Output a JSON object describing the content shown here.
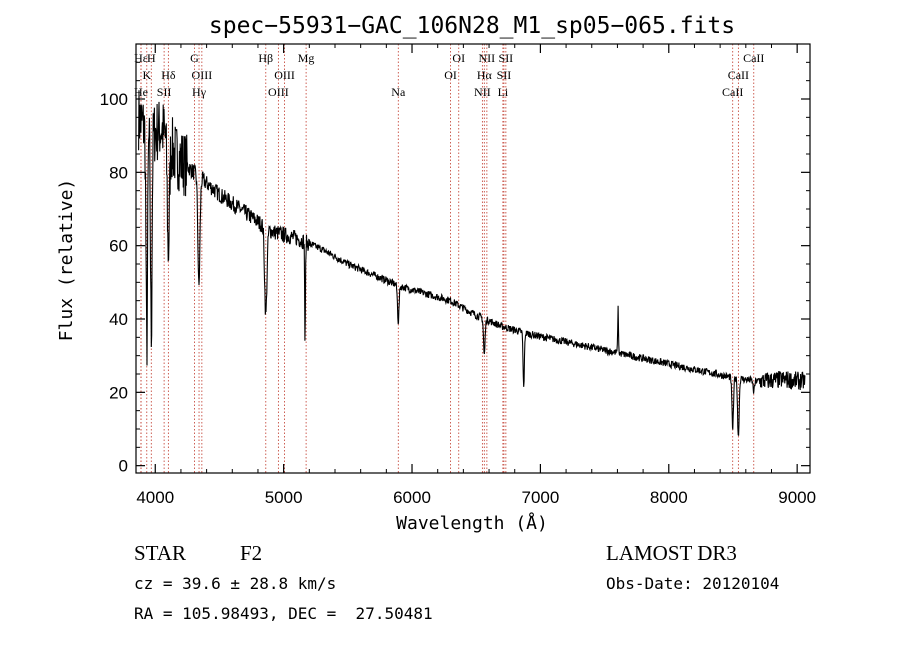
{
  "chart_data": {
    "type": "line",
    "title": "spec−55931−GAC_106N28_M1_sp05−065.fits",
    "xlabel": "Wavelength (Å)",
    "ylabel": "Flux (relative)",
    "xlim": [
      3850,
      9100
    ],
    "ylim": [
      -2,
      115
    ],
    "xticks": [
      4000,
      5000,
      6000,
      7000,
      8000,
      9000
    ],
    "yticks": [
      0,
      20,
      40,
      60,
      80,
      100
    ],
    "line_color": "#000000",
    "marker_color": "#c0392b",
    "continuum": [
      [
        3870,
        95
      ],
      [
        3950,
        90
      ],
      [
        4050,
        92
      ],
      [
        4150,
        85
      ],
      [
        4300,
        80
      ],
      [
        4500,
        74
      ],
      [
        4700,
        69
      ],
      [
        4900,
        64
      ],
      [
        5100,
        62
      ],
      [
        5300,
        59
      ],
      [
        5500,
        55
      ],
      [
        5700,
        52
      ],
      [
        5900,
        49
      ],
      [
        6100,
        47
      ],
      [
        6300,
        45
      ],
      [
        6500,
        41
      ],
      [
        6700,
        38
      ],
      [
        6900,
        36
      ],
      [
        7100,
        34.5
      ],
      [
        7300,
        33
      ],
      [
        7500,
        31.5
      ],
      [
        7700,
        30
      ],
      [
        7900,
        28.5
      ],
      [
        8100,
        27
      ],
      [
        8300,
        25.5
      ],
      [
        8500,
        24
      ],
      [
        8700,
        23
      ],
      [
        8900,
        23.5
      ],
      [
        9050,
        23
      ]
    ],
    "absorption_features": [
      {
        "center": 3934,
        "depth": 60,
        "width": 6
      },
      {
        "center": 3969,
        "depth": 55,
        "width": 6
      },
      {
        "center": 4102,
        "depth": 30,
        "width": 8
      },
      {
        "center": 4340,
        "depth": 30,
        "width": 8
      },
      {
        "center": 4861,
        "depth": 24,
        "width": 9
      },
      {
        "center": 5167,
        "depth": 28,
        "width": 3
      },
      {
        "center": 5893,
        "depth": 10,
        "width": 6
      },
      {
        "center": 6563,
        "depth": 10,
        "width": 6
      },
      {
        "center": 6870,
        "depth": 15,
        "width": 5
      },
      {
        "center": 8498,
        "depth": 14,
        "width": 6
      },
      {
        "center": 8542,
        "depth": 16,
        "width": 6
      },
      {
        "center": 8662,
        "depth": 3,
        "width": 6
      }
    ],
    "emission_features": [
      {
        "center": 7605,
        "height": 12,
        "width": 3
      }
    ],
    "reference_lines": [
      {
        "label": "Hε",
        "wavelength": 3889,
        "row": 1
      },
      {
        "label": "He",
        "wavelength": 3889,
        "row": 3
      },
      {
        "label": "K",
        "wavelength": 3934,
        "row": 2
      },
      {
        "label": "H",
        "wavelength": 3969,
        "row": 1
      },
      {
        "label": "SII",
        "wavelength": 4069,
        "row": 3
      },
      {
        "label": "Hδ",
        "wavelength": 4102,
        "row": 2
      },
      {
        "label": "G",
        "wavelength": 4305,
        "row": 1
      },
      {
        "label": "Hγ",
        "wavelength": 4341,
        "row": 3
      },
      {
        "label": "OIII",
        "wavelength": 4363,
        "row": 2
      },
      {
        "label": "Hβ",
        "wavelength": 4861,
        "row": 1
      },
      {
        "label": "OIII",
        "wavelength": 4959,
        "row": 3
      },
      {
        "label": "OIII",
        "wavelength": 5007,
        "row": 2
      },
      {
        "label": "Mg",
        "wavelength": 5175,
        "row": 1
      },
      {
        "label": "Na",
        "wavelength": 5893,
        "row": 3
      },
      {
        "label": "OI",
        "wavelength": 6300,
        "row": 2
      },
      {
        "label": "OI",
        "wavelength": 6364,
        "row": 1
      },
      {
        "label": "NII",
        "wavelength": 6548,
        "row": 3
      },
      {
        "label": "NII",
        "wavelength": 6583,
        "row": 1
      },
      {
        "label": "Hα",
        "wavelength": 6563,
        "row": 2
      },
      {
        "label": "SII",
        "wavelength": 6716,
        "row": 2
      },
      {
        "label": "SII",
        "wavelength": 6731,
        "row": 1
      },
      {
        "label": "Li",
        "wavelength": 6708,
        "row": 3
      },
      {
        "label": "CaII",
        "wavelength": 8498,
        "row": 3
      },
      {
        "label": "CaII",
        "wavelength": 8542,
        "row": 2
      },
      {
        "label": "CaII",
        "wavelength": 8662,
        "row": 1
      }
    ]
  },
  "info": {
    "object_class": "STAR",
    "subclass": "F2",
    "survey": "LAMOST DR3",
    "cz": "cz = 39.6 ± 28.8 km/s",
    "radec": "RA = 105.98493, DEC =  27.50481",
    "obs_date": "Obs-Date: 20120104"
  }
}
